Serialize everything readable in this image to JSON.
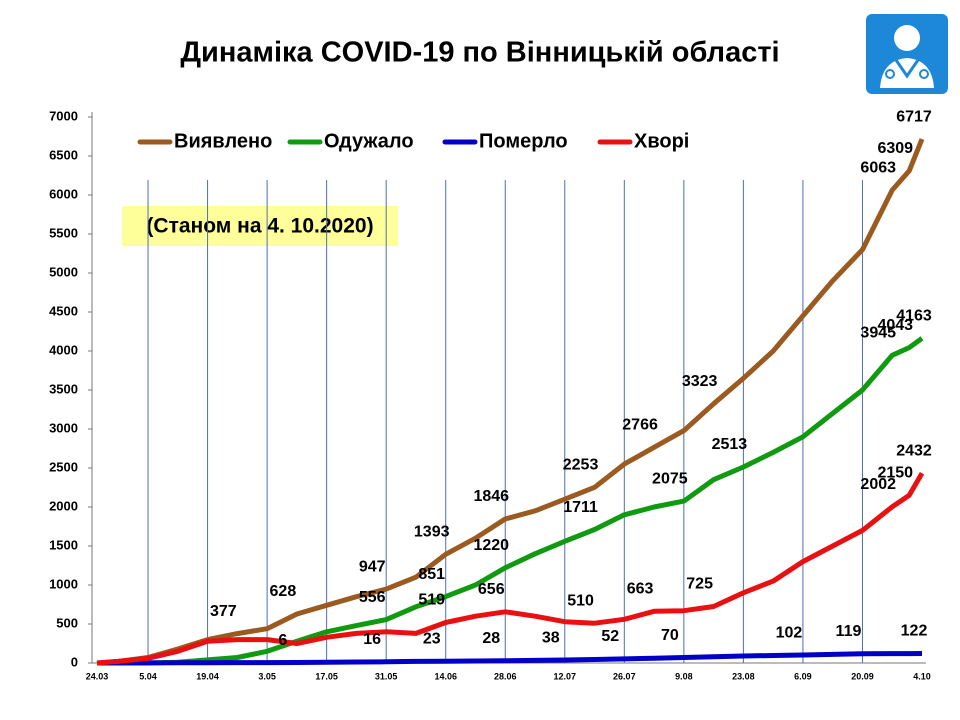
{
  "chart_data": {
    "type": "line",
    "title": "Динаміка COVID-19 по Вінницькій області",
    "subtitle": "(Станом на 4. 10.2020)",
    "x": [
      "24.03",
      "29.03",
      "5.04",
      "12.04",
      "19.04",
      "26.04",
      "3.05",
      "10.05",
      "17.05",
      "24.05",
      "31.05",
      "7.06",
      "14.06",
      "21.06",
      "28.06",
      "5.07",
      "12.07",
      "19.07",
      "26.07",
      "2.08",
      "9.08",
      "16.08",
      "23.08",
      "30.08",
      "6.09",
      "13.09",
      "20.09",
      "27.09",
      "1.10",
      "4.10"
    ],
    "xlim": [
      "24.03",
      "4.10"
    ],
    "xticks": [
      "24.03",
      "5.04",
      "19.04",
      "3.05",
      "17.05",
      "31.05",
      "14.06",
      "28.06",
      "12.07",
      "26.07",
      "9.08",
      "23.08",
      "6.09",
      "20.09",
      "4.10"
    ],
    "ylim": [
      0,
      7000
    ],
    "yticks": [
      0,
      500,
      1000,
      1500,
      2000,
      2500,
      3000,
      3500,
      4000,
      4500,
      5000,
      5500,
      6000,
      6500,
      7000
    ],
    "grid": "x",
    "legend": "top",
    "series": [
      {
        "name": "Виявлено",
        "color": "#9b5a1f",
        "values": [
          0,
          20,
          70,
          180,
          300,
          377,
          440,
          628,
          740,
          850,
          947,
          1100,
          1393,
          1600,
          1846,
          1950,
          2100,
          2253,
          2550,
          2766,
          2980,
          3323,
          3650,
          4000,
          4450,
          4900,
          5300,
          6063,
          6309,
          6717
        ],
        "value_labels": [
          null,
          null,
          null,
          null,
          null,
          "377",
          null,
          "628",
          null,
          null,
          "947",
          null,
          "1393",
          null,
          "1846",
          null,
          null,
          "2253",
          null,
          "2766",
          null,
          "3323",
          null,
          null,
          null,
          null,
          null,
          "6063",
          "6309",
          "6717"
        ]
      },
      {
        "name": "Одужало",
        "color": "#109a10",
        "values": [
          0,
          0,
          0,
          10,
          40,
          70,
          150,
          280,
          400,
          480,
          556,
          720,
          851,
          1000,
          1220,
          1400,
          1560,
          1711,
          1900,
          2000,
          2075,
          2350,
          2513,
          2700,
          2900,
          3200,
          3500,
          3945,
          4043,
          4163
        ],
        "value_labels": [
          null,
          null,
          null,
          null,
          null,
          null,
          null,
          null,
          null,
          null,
          "556",
          null,
          "851",
          null,
          "1220",
          null,
          null,
          "1711",
          null,
          null,
          "2075",
          null,
          "2513",
          null,
          null,
          null,
          null,
          "3945",
          "4043",
          "4163"
        ]
      },
      {
        "name": "Померло",
        "color": "#0000c8",
        "values": [
          0,
          0,
          1,
          3,
          4,
          5,
          5,
          6,
          10,
          13,
          16,
          20,
          23,
          26,
          28,
          33,
          38,
          45,
          52,
          60,
          70,
          80,
          90,
          96,
          102,
          110,
          119,
          120,
          121,
          122
        ],
        "value_labels": [
          null,
          null,
          null,
          null,
          null,
          null,
          null,
          "6",
          null,
          null,
          "16",
          null,
          "23",
          null,
          "28",
          null,
          "38",
          null,
          "52",
          null,
          "70",
          null,
          null,
          null,
          "102",
          null,
          "119",
          null,
          null,
          "122"
        ]
      },
      {
        "name": "Хворі",
        "color": "#e81010",
        "values": [
          0,
          20,
          60,
          150,
          280,
          300,
          300,
          250,
          330,
          380,
          400,
          380,
          519,
          600,
          656,
          600,
          530,
          510,
          560,
          663,
          670,
          725,
          900,
          1050,
          1300,
          1500,
          1700,
          2002,
          2150,
          2432
        ],
        "value_labels": [
          null,
          null,
          null,
          null,
          null,
          null,
          null,
          null,
          null,
          null,
          null,
          null,
          "519",
          null,
          "656",
          null,
          null,
          "510",
          null,
          "663",
          null,
          "725",
          null,
          null,
          null,
          null,
          null,
          "2002",
          "2150",
          "2432"
        ]
      }
    ]
  }
}
